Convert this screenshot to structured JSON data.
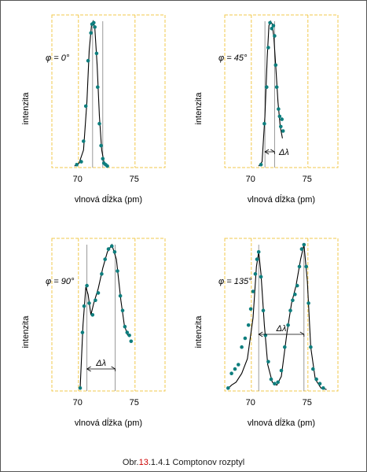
{
  "figure": {
    "caption": {
      "prefix": "Obr.",
      "number": "13",
      "suffix": ".1.4.1 Comptonov  rozptyl"
    },
    "colors": {
      "background": "#e6f3f8",
      "frame": "#f2c94c",
      "points": "#0e7e7e",
      "curve": "#000000",
      "gridline": "#808080",
      "caption_number": "#cc0000"
    }
  },
  "chart_data": [
    {
      "type": "scatter",
      "title": "",
      "angle_label": "φ = 0°",
      "xlabel": "vlnová dĺžka (pm)",
      "ylabel": "intenzita",
      "xticks": [
        70,
        75
      ],
      "xlim": [
        68,
        78
      ],
      "ylim": [
        0,
        1
      ],
      "grid": true,
      "reference_lines": [
        71.6,
        72.5
      ],
      "delta_label": "",
      "points": [
        [
          70.2,
          0.02
        ],
        [
          70.6,
          0.04
        ],
        [
          70.8,
          0.18
        ],
        [
          71.0,
          0.42
        ],
        [
          71.2,
          0.73
        ],
        [
          71.45,
          0.92
        ],
        [
          71.55,
          0.98
        ],
        [
          71.7,
          0.99
        ],
        [
          71.8,
          0.96
        ],
        [
          71.95,
          0.78
        ],
        [
          72.05,
          0.55
        ],
        [
          72.2,
          0.3
        ],
        [
          72.35,
          0.15
        ],
        [
          72.5,
          0.06
        ],
        [
          72.6,
          0.03
        ],
        [
          72.75,
          0.02
        ],
        [
          72.9,
          0.01
        ]
      ],
      "curve": [
        [
          70.0,
          0.01
        ],
        [
          70.4,
          0.03
        ],
        [
          70.8,
          0.12
        ],
        [
          71.1,
          0.45
        ],
        [
          71.3,
          0.8
        ],
        [
          71.5,
          0.97
        ],
        [
          71.65,
          1.0
        ],
        [
          71.8,
          0.95
        ],
        [
          72.0,
          0.7
        ],
        [
          72.2,
          0.35
        ],
        [
          72.4,
          0.12
        ],
        [
          72.6,
          0.04
        ],
        [
          72.9,
          0.01
        ]
      ]
    },
    {
      "type": "scatter",
      "title": "",
      "angle_label": "φ = 45°",
      "xlabel": "vlnová dĺžka (pm)",
      "ylabel": "intenzita",
      "xticks": [
        70,
        75
      ],
      "xlim": [
        68,
        78
      ],
      "ylim": [
        0,
        1
      ],
      "grid": true,
      "reference_lines": [
        71.55,
        72.4
      ],
      "delta_label": "Δλ",
      "points": [
        [
          71.2,
          0.02
        ],
        [
          71.5,
          0.3
        ],
        [
          71.7,
          0.55
        ],
        [
          71.85,
          0.82
        ],
        [
          72.0,
          0.99
        ],
        [
          72.15,
          0.95
        ],
        [
          72.3,
          0.97
        ],
        [
          72.4,
          0.9
        ],
        [
          72.5,
          0.7
        ],
        [
          72.6,
          0.55
        ],
        [
          72.75,
          0.4
        ],
        [
          72.85,
          0.35
        ],
        [
          72.95,
          0.28
        ],
        [
          73.05,
          0.33
        ],
        [
          73.15,
          0.25
        ]
      ],
      "curve": [
        [
          71.0,
          0.01
        ],
        [
          71.3,
          0.04
        ],
        [
          71.55,
          0.35
        ],
        [
          71.75,
          0.75
        ],
        [
          71.9,
          0.97
        ],
        [
          72.05,
          1.0
        ],
        [
          72.2,
          0.98
        ],
        [
          72.35,
          0.88
        ],
        [
          72.5,
          0.7
        ],
        [
          72.7,
          0.45
        ],
        [
          72.9,
          0.28
        ],
        [
          73.1,
          0.2
        ]
      ]
    },
    {
      "type": "scatter",
      "title": "",
      "angle_label": "φ = 90°",
      "xlabel": "vlnová dĺžka (pm)",
      "ylabel": "intenzita",
      "xticks": [
        70,
        75
      ],
      "xlim": [
        68,
        78
      ],
      "ylim": [
        0,
        1
      ],
      "grid": true,
      "reference_lines": [
        71.1,
        73.6
      ],
      "delta_label": "Δλ",
      "points": [
        [
          70.5,
          0.02
        ],
        [
          70.7,
          0.4
        ],
        [
          70.85,
          0.58
        ],
        [
          71.1,
          0.72
        ],
        [
          71.3,
          0.6
        ],
        [
          71.6,
          0.52
        ],
        [
          71.85,
          0.62
        ],
        [
          72.1,
          0.67
        ],
        [
          72.4,
          0.8
        ],
        [
          72.7,
          0.9
        ],
        [
          73.0,
          0.97
        ],
        [
          73.3,
          0.99
        ],
        [
          73.55,
          0.95
        ],
        [
          73.8,
          0.82
        ],
        [
          74.05,
          0.65
        ],
        [
          74.25,
          0.55
        ],
        [
          74.45,
          0.44
        ],
        [
          74.65,
          0.4
        ],
        [
          74.85,
          0.38
        ],
        [
          75.0,
          0.34
        ]
      ],
      "curve": [
        [
          70.5,
          0.02
        ],
        [
          70.75,
          0.45
        ],
        [
          71.0,
          0.71
        ],
        [
          71.2,
          0.66
        ],
        [
          71.45,
          0.52
        ],
        [
          71.7,
          0.6
        ],
        [
          72.1,
          0.7
        ],
        [
          72.5,
          0.84
        ],
        [
          72.9,
          0.95
        ],
        [
          73.3,
          1.0
        ],
        [
          73.7,
          0.9
        ],
        [
          74.1,
          0.62
        ],
        [
          74.4,
          0.45
        ],
        [
          74.7,
          0.38
        ]
      ]
    },
    {
      "type": "scatter",
      "title": "",
      "angle_label": "φ = 135°",
      "xlabel": "vlnová dĺžka (pm)",
      "ylabel": "intenzita",
      "xticks": [
        70,
        75
      ],
      "xlim": [
        68,
        78
      ],
      "ylim": [
        0,
        1
      ],
      "grid": true,
      "reference_lines": [
        71.0,
        75.0
      ],
      "delta_label": "Δλ",
      "points": [
        [
          68.3,
          0.02
        ],
        [
          68.6,
          0.12
        ],
        [
          68.9,
          0.15
        ],
        [
          69.2,
          0.18
        ],
        [
          69.5,
          0.3
        ],
        [
          69.8,
          0.36
        ],
        [
          70.1,
          0.45
        ],
        [
          70.3,
          0.56
        ],
        [
          70.5,
          0.68
        ],
        [
          70.7,
          0.8
        ],
        [
          70.85,
          0.9
        ],
        [
          71.0,
          0.95
        ],
        [
          71.2,
          0.78
        ],
        [
          71.4,
          0.55
        ],
        [
          71.6,
          0.38
        ],
        [
          71.85,
          0.2
        ],
        [
          72.1,
          0.08
        ],
        [
          72.4,
          0.05
        ],
        [
          72.7,
          0.06
        ],
        [
          73.0,
          0.14
        ],
        [
          73.3,
          0.3
        ],
        [
          73.6,
          0.45
        ],
        [
          73.8,
          0.55
        ],
        [
          74.0,
          0.62
        ],
        [
          74.2,
          0.66
        ],
        [
          74.4,
          0.72
        ],
        [
          74.6,
          0.85
        ],
        [
          74.8,
          0.97
        ],
        [
          75.0,
          1.0
        ],
        [
          75.2,
          0.85
        ],
        [
          75.4,
          0.6
        ],
        [
          75.6,
          0.3
        ],
        [
          75.8,
          0.15
        ],
        [
          76.1,
          0.08
        ],
        [
          76.4,
          0.05
        ],
        [
          76.7,
          0.02
        ]
      ],
      "curve": [
        [
          68.2,
          0.01
        ],
        [
          68.6,
          0.04
        ],
        [
          69.0,
          0.06
        ],
        [
          69.5,
          0.12
        ],
        [
          70.0,
          0.22
        ],
        [
          70.5,
          0.5
        ],
        [
          70.8,
          0.85
        ],
        [
          71.0,
          0.95
        ],
        [
          71.2,
          0.8
        ],
        [
          71.5,
          0.45
        ],
        [
          71.8,
          0.18
        ],
        [
          72.2,
          0.06
        ],
        [
          72.6,
          0.04
        ],
        [
          73.0,
          0.1
        ],
        [
          73.5,
          0.4
        ],
        [
          73.9,
          0.6
        ],
        [
          74.3,
          0.72
        ],
        [
          74.7,
          0.9
        ],
        [
          75.0,
          1.0
        ],
        [
          75.3,
          0.75
        ],
        [
          75.6,
          0.3
        ],
        [
          76.0,
          0.08
        ],
        [
          76.5,
          0.02
        ],
        [
          77.0,
          0.01
        ]
      ]
    }
  ]
}
